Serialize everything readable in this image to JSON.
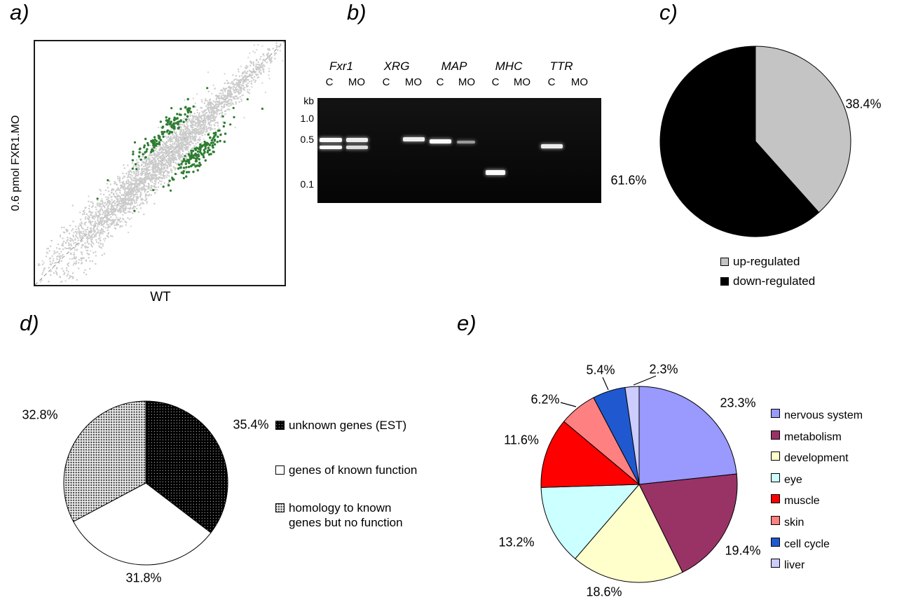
{
  "figure": {
    "panels": {
      "a": {
        "letter": "a)",
        "x_axis": "WT",
        "y_axis": "0.6 pmol FXR1.MO"
      },
      "b": {
        "letter": "b)",
        "kb_unit": "kb",
        "size_markers": [
          "1.0",
          "0.5",
          "0.1"
        ],
        "genes": [
          "Fxr1",
          "XRG",
          "MAP",
          "MHC",
          "TTR"
        ],
        "lane_labels": [
          "C",
          "MO"
        ]
      },
      "c": {
        "letter": "c)"
      },
      "d": {
        "letter": "d)"
      },
      "e": {
        "letter": "e)"
      }
    }
  },
  "chart_data": [
    {
      "panel": "a",
      "type": "scatter",
      "xlabel": "WT",
      "ylabel": "0.6 pmol FXR1.MO",
      "diagonal_reference_line": true,
      "series": [
        {
          "name": "unchanged transcripts",
          "color": "#cbcbcb",
          "approx_points": 3000,
          "distribution": "dense cloud hugging the y=x diagonal, fanning wider at low intensities"
        },
        {
          "name": "differentially expressed transcripts",
          "color": "#2e7d32",
          "approx_points": 290,
          "distribution": "two clusters flanking the diagonal (above = up-regulated, below = down-regulated)"
        }
      ]
    },
    {
      "panel": "b",
      "type": "table",
      "columns": [
        "gene",
        "C",
        "MO"
      ],
      "rows": [
        {
          "gene": "Fxr1",
          "C": "doublet ~0.5 kb",
          "MO": "doublet ~0.5 kb"
        },
        {
          "gene": "XRG",
          "C": "no band",
          "MO": "band ~0.5 kb"
        },
        {
          "gene": "MAP",
          "C": "band ~0.5 kb",
          "MO": "faint band ~0.5 kb"
        },
        {
          "gene": "MHC",
          "C": "band ~0.15 kb",
          "MO": "no band"
        },
        {
          "gene": "TTR",
          "C": "band ~0.45 kb",
          "MO": "no band"
        }
      ]
    },
    {
      "panel": "c",
      "type": "pie",
      "start_angle_deg": 0,
      "direction": "clockwise",
      "legend_position": "below",
      "slices": [
        {
          "label": "up-regulated",
          "value": 38.4,
          "display": "38.4%",
          "color": "#c4c4c4"
        },
        {
          "label": "down-regulated",
          "value": 61.6,
          "display": "61.6%",
          "color": "#000000"
        }
      ]
    },
    {
      "panel": "d",
      "type": "pie",
      "start_angle_deg": 0,
      "direction": "clockwise",
      "legend_position": "right",
      "slices": [
        {
          "label": "unknown genes (EST)",
          "label_lines": [
            "unknown genes (EST)"
          ],
          "value": 35.4,
          "display": "35.4%",
          "pattern": "black-dots"
        },
        {
          "label": "genes of known function",
          "label_lines": [
            "genes of known function"
          ],
          "value": 31.8,
          "display": "31.8%",
          "pattern": "solid-white"
        },
        {
          "label": "homology to known genes but no function",
          "label_lines": [
            "homology to known",
            "genes but no function"
          ],
          "value": 32.8,
          "display": "32.8%",
          "pattern": "gray-dots"
        }
      ]
    },
    {
      "panel": "e",
      "type": "pie",
      "start_angle_deg": 0,
      "direction": "clockwise",
      "legend_position": "right",
      "slices": [
        {
          "label": "nervous system",
          "value": 23.3,
          "display": "23.3%",
          "color": "#9999fe"
        },
        {
          "label": "metabolism",
          "value": 19.4,
          "display": "19.4%",
          "color": "#993366"
        },
        {
          "label": "development",
          "value": 18.6,
          "display": "18.6%",
          "color": "#ffffcc"
        },
        {
          "label": "eye",
          "value": 13.2,
          "display": "13.2%",
          "color": "#ccffff"
        },
        {
          "label": "muscle",
          "value": 11.6,
          "display": "11.6%",
          "color": "#fe0000"
        },
        {
          "label": "skin",
          "value": 6.2,
          "display": "6.2%",
          "color": "#fe8081"
        },
        {
          "label": "cell cycle",
          "value": 5.4,
          "display": "5.4%",
          "color": "#2059cf"
        },
        {
          "label": "liver",
          "value": 2.3,
          "display": "2.3%",
          "color": "#ccccfe"
        }
      ]
    }
  ]
}
